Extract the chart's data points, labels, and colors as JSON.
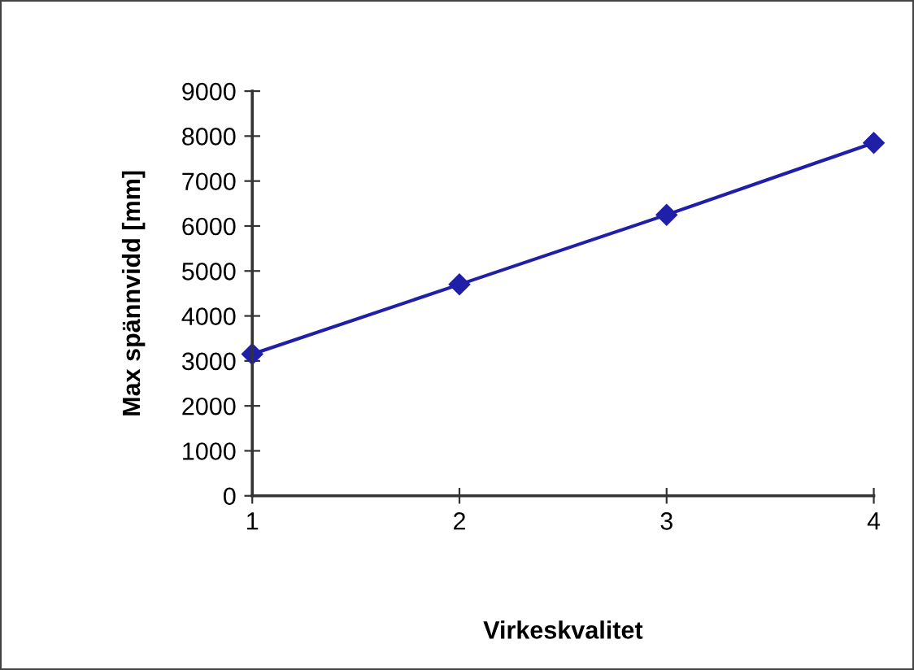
{
  "chart_data": {
    "type": "line",
    "xlabel": "Virkeskvalitet",
    "ylabel": "Max spännvidd [mm]",
    "x": [
      1,
      2,
      3,
      4
    ],
    "series": [
      {
        "color": "#1f1fa8",
        "values": [
          3150,
          4700,
          6250,
          7850
        ]
      }
    ],
    "xlim": [
      1,
      4
    ],
    "xticks": [
      1,
      2,
      3,
      4
    ],
    "ylim": [
      0,
      9000
    ],
    "yticks": [
      0,
      1000,
      2000,
      3000,
      4000,
      5000,
      6000,
      7000,
      8000,
      9000
    ],
    "marker": "diamond",
    "line_style": "solid",
    "grid": false,
    "legend": false
  }
}
